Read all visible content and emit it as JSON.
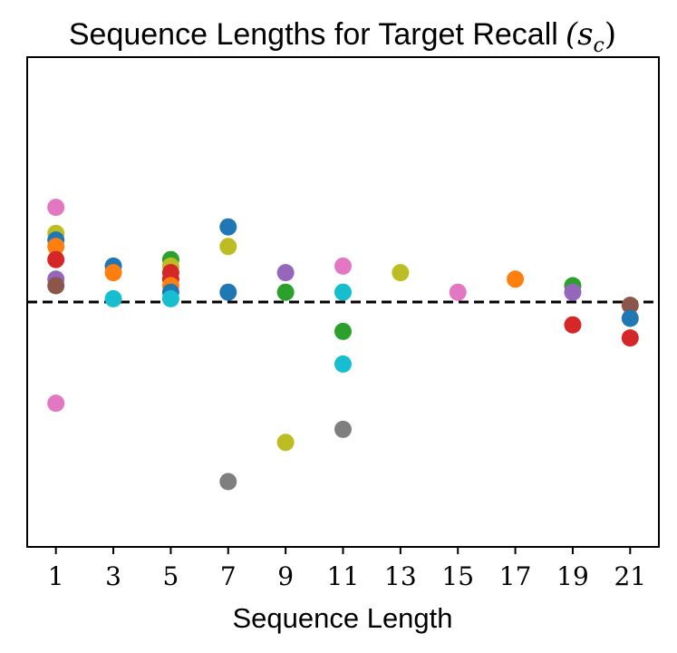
{
  "chart_data": {
    "type": "scatter",
    "title": "Sequence Lengths for Target Recall",
    "title_math": "(s",
    "title_math_sub": "c",
    "title_math_close": ")",
    "xlabel": "Sequence Length",
    "ylabel": "",
    "x_ticks": [
      1,
      3,
      5,
      7,
      9,
      11,
      13,
      15,
      17,
      19,
      21
    ],
    "x_tick_labels": [
      "1",
      "3",
      "5",
      "7",
      "9",
      "11",
      "13",
      "15",
      "17",
      "19",
      "21"
    ],
    "xlim": [
      0,
      22
    ],
    "ylim": [
      -0.75,
      0.75
    ],
    "y_ticks_shown": false,
    "reference_line": {
      "y": 0,
      "style": "dashed",
      "color": "#000000"
    },
    "grid": false,
    "legend": "none",
    "colors": {
      "blue": "#1f77b4",
      "orange": "#ff7f0e",
      "green": "#2ca02c",
      "red": "#d62728",
      "purple": "#9467bd",
      "brown": "#8c564b",
      "pink": "#e377c2",
      "gray": "#7f7f7f",
      "olive": "#bcbd22",
      "cyan": "#17becf"
    },
    "points": [
      {
        "x": 1,
        "y": 0.29,
        "color": "#e377c2"
      },
      {
        "x": 1,
        "y": 0.21,
        "color": "#bcbd22"
      },
      {
        "x": 1,
        "y": 0.19,
        "color": "#1f77b4"
      },
      {
        "x": 1,
        "y": 0.17,
        "color": "#ff7f0e"
      },
      {
        "x": 1,
        "y": 0.13,
        "color": "#d62728"
      },
      {
        "x": 1,
        "y": 0.07,
        "color": "#9467bd"
      },
      {
        "x": 1,
        "y": 0.05,
        "color": "#8c564b"
      },
      {
        "x": 1,
        "y": -0.31,
        "color": "#e377c2"
      },
      {
        "x": 3,
        "y": 0.11,
        "color": "#1f77b4"
      },
      {
        "x": 3,
        "y": 0.09,
        "color": "#ff7f0e"
      },
      {
        "x": 3,
        "y": 0.01,
        "color": "#17becf"
      },
      {
        "x": 5,
        "y": 0.13,
        "color": "#2ca02c"
      },
      {
        "x": 5,
        "y": 0.11,
        "color": "#bcbd22"
      },
      {
        "x": 5,
        "y": 0.09,
        "color": "#d62728"
      },
      {
        "x": 5,
        "y": 0.07,
        "color": "#d62728"
      },
      {
        "x": 5,
        "y": 0.05,
        "color": "#ff7f0e"
      },
      {
        "x": 5,
        "y": 0.03,
        "color": "#1f77b4"
      },
      {
        "x": 5,
        "y": 0.01,
        "color": "#17becf"
      },
      {
        "x": 7,
        "y": 0.23,
        "color": "#1f77b4"
      },
      {
        "x": 7,
        "y": 0.17,
        "color": "#bcbd22"
      },
      {
        "x": 7,
        "y": 0.03,
        "color": "#1f77b4"
      },
      {
        "x": 7,
        "y": -0.55,
        "color": "#7f7f7f"
      },
      {
        "x": 9,
        "y": 0.09,
        "color": "#9467bd"
      },
      {
        "x": 9,
        "y": 0.03,
        "color": "#2ca02c"
      },
      {
        "x": 9,
        "y": -0.43,
        "color": "#bcbd22"
      },
      {
        "x": 11,
        "y": 0.11,
        "color": "#e377c2"
      },
      {
        "x": 11,
        "y": 0.03,
        "color": "#17becf"
      },
      {
        "x": 11,
        "y": -0.09,
        "color": "#2ca02c"
      },
      {
        "x": 11,
        "y": -0.19,
        "color": "#17becf"
      },
      {
        "x": 11,
        "y": -0.39,
        "color": "#7f7f7f"
      },
      {
        "x": 13,
        "y": 0.09,
        "color": "#bcbd22"
      },
      {
        "x": 15,
        "y": 0.03,
        "color": "#e377c2"
      },
      {
        "x": 17,
        "y": 0.07,
        "color": "#ff7f0e"
      },
      {
        "x": 19,
        "y": 0.05,
        "color": "#2ca02c"
      },
      {
        "x": 19,
        "y": 0.03,
        "color": "#9467bd"
      },
      {
        "x": 19,
        "y": -0.07,
        "color": "#d62728"
      },
      {
        "x": 21,
        "y": -0.01,
        "color": "#8c564b"
      },
      {
        "x": 21,
        "y": -0.05,
        "color": "#1f77b4"
      },
      {
        "x": 21,
        "y": -0.11,
        "color": "#d62728"
      }
    ]
  }
}
